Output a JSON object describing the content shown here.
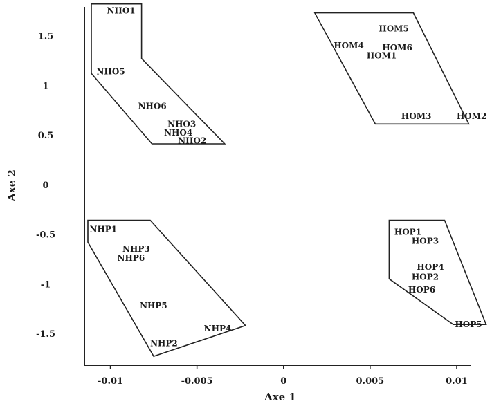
{
  "chart_data": {
    "type": "scatter",
    "title": "",
    "xlabel": "Axe 1",
    "ylabel": "Axe 2",
    "xlim": [
      -0.0115,
      0.0108
    ],
    "ylim": [
      -1.82,
      1.79
    ],
    "x_ticks": [
      {
        "value": -0.01,
        "label": "-0.01"
      },
      {
        "value": -0.005,
        "label": "-0.005"
      },
      {
        "value": 0,
        "label": "0"
      },
      {
        "value": 0.005,
        "label": "0.005"
      },
      {
        "value": 0.01,
        "label": "0.01"
      }
    ],
    "y_ticks": [
      {
        "value": 1.5,
        "label": "1.5"
      },
      {
        "value": 1,
        "label": "1"
      },
      {
        "value": 0.5,
        "label": "0.5"
      },
      {
        "value": 0,
        "label": "0"
      },
      {
        "value": -0.5,
        "label": "-0.5"
      },
      {
        "value": -1,
        "label": "-1"
      },
      {
        "value": -1.5,
        "label": "-1.5"
      }
    ],
    "grid": false,
    "legend": "none",
    "points": [
      {
        "label": "NHO1",
        "x": -0.0102,
        "y": 1.75
      },
      {
        "label": "NHO5",
        "x": -0.0108,
        "y": 1.14
      },
      {
        "label": "NHO6",
        "x": -0.0084,
        "y": 0.79
      },
      {
        "label": "NHO3",
        "x": -0.0067,
        "y": 0.61
      },
      {
        "label": "NHO4",
        "x": -0.0069,
        "y": 0.52
      },
      {
        "label": "NHO2",
        "x": -0.0061,
        "y": 0.44
      },
      {
        "label": "HOM5",
        "x": 0.0055,
        "y": 1.57
      },
      {
        "label": "HOM4",
        "x": 0.0029,
        "y": 1.4
      },
      {
        "label": "HOM6",
        "x": 0.0057,
        "y": 1.38
      },
      {
        "label": "HOM1",
        "x": 0.0048,
        "y": 1.3
      },
      {
        "label": "HOM3",
        "x": 0.0068,
        "y": 0.69
      },
      {
        "label": "HOM2",
        "x": 0.01,
        "y": 0.69
      },
      {
        "label": "NHP1",
        "x": -0.0112,
        "y": -0.45
      },
      {
        "label": "NHP3",
        "x": -0.0093,
        "y": -0.65
      },
      {
        "label": "NHP6",
        "x": -0.0096,
        "y": -0.74
      },
      {
        "label": "NHP5",
        "x": -0.0083,
        "y": -1.22
      },
      {
        "label": "NHP4",
        "x": -0.0046,
        "y": -1.45
      },
      {
        "label": "NHP2",
        "x": -0.0077,
        "y": -1.6
      },
      {
        "label": "HOP1",
        "x": 0.0064,
        "y": -0.48
      },
      {
        "label": "HOP3",
        "x": 0.0074,
        "y": -0.57
      },
      {
        "label": "HOP4",
        "x": 0.0077,
        "y": -0.83
      },
      {
        "label": "HOP2",
        "x": 0.0074,
        "y": -0.93
      },
      {
        "label": "HOP6",
        "x": 0.0072,
        "y": -1.06
      },
      {
        "label": "HOP5",
        "x": 0.0099,
        "y": -1.41
      }
    ],
    "groups": [
      {
        "name": "NHO",
        "hull": [
          [
            -0.0111,
            1.82
          ],
          [
            -0.0082,
            1.82
          ],
          [
            -0.0082,
            1.27
          ],
          [
            -0.0034,
            0.41
          ],
          [
            -0.0076,
            0.41
          ],
          [
            -0.0111,
            1.12
          ]
        ]
      },
      {
        "name": "HOM",
        "hull": [
          [
            0.0018,
            1.73
          ],
          [
            0.0075,
            1.73
          ],
          [
            0.0107,
            0.61
          ],
          [
            0.0053,
            0.61
          ]
        ]
      },
      {
        "name": "NHP",
        "hull": [
          [
            -0.0113,
            -0.36
          ],
          [
            -0.0077,
            -0.36
          ],
          [
            -0.0022,
            -1.42
          ],
          [
            -0.0075,
            -1.73
          ],
          [
            -0.0113,
            -0.58
          ]
        ]
      },
      {
        "name": "HOP",
        "hull": [
          [
            0.0061,
            -0.36
          ],
          [
            0.0093,
            -0.36
          ],
          [
            0.0117,
            -1.41
          ],
          [
            0.0098,
            -1.41
          ],
          [
            0.0061,
            -0.95
          ]
        ]
      }
    ]
  }
}
